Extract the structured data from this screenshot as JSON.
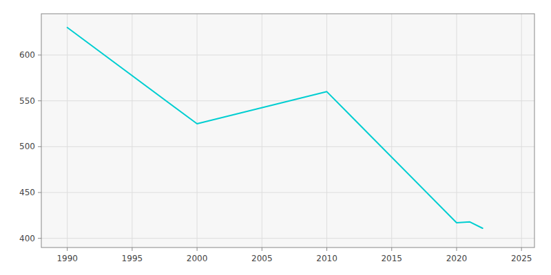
{
  "chart_data": {
    "type": "line",
    "x": [
      1990,
      2000,
      2010,
      2020,
      2021,
      2022
    ],
    "values": [
      630,
      525,
      560,
      417,
      418,
      411
    ],
    "color": "#00CED1",
    "xlim": [
      1988,
      2026
    ],
    "ylim": [
      390,
      645
    ],
    "xticks": [
      1990,
      1995,
      2000,
      2005,
      2010,
      2015,
      2020,
      2025
    ],
    "yticks": [
      400,
      450,
      500,
      550,
      600
    ],
    "grid": true
  }
}
